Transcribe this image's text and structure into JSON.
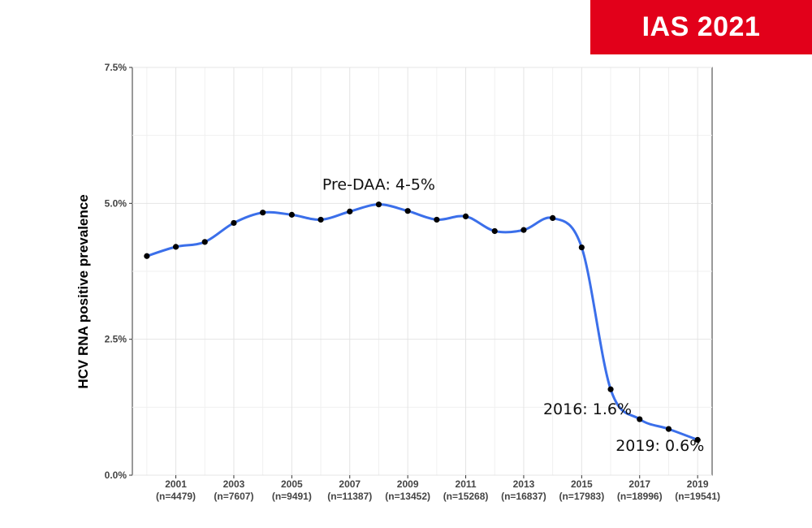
{
  "badge": {
    "text": "IAS 2021",
    "color": "#e2001a"
  },
  "chart_data": {
    "type": "line",
    "title": "",
    "xlabel": "",
    "ylabel": "HCV RNA positive prevalence",
    "x": [
      2000,
      2001,
      2002,
      2003,
      2004,
      2005,
      2006,
      2007,
      2008,
      2009,
      2010,
      2011,
      2012,
      2013,
      2014,
      2015,
      2016,
      2017,
      2018,
      2019
    ],
    "series": [
      {
        "values": [
          4.03,
          4.2,
          4.29,
          4.64,
          4.83,
          4.79,
          4.7,
          4.85,
          4.98,
          4.86,
          4.7,
          4.76,
          4.49,
          4.51,
          4.73,
          4.19,
          1.58,
          1.03,
          0.85,
          0.65
        ],
        "color": "#3b6fea",
        "marker_color": "#000000"
      }
    ],
    "xlim": [
      1999.5,
      2019.5
    ],
    "ylim": [
      0,
      7.5
    ],
    "y_ticks": [
      {
        "value": 0,
        "label": "0.0%"
      },
      {
        "value": 2.5,
        "label": "2.5%"
      },
      {
        "value": 5,
        "label": "5.0%"
      },
      {
        "value": 7.5,
        "label": "7.5%"
      }
    ],
    "x_ticks": [
      {
        "value": 2001,
        "label": "2001",
        "sublabel": "(n=4479)"
      },
      {
        "value": 2003,
        "label": "2003",
        "sublabel": "(n=7607)"
      },
      {
        "value": 2005,
        "label": "2005",
        "sublabel": "(n=9491)"
      },
      {
        "value": 2007,
        "label": "2007",
        "sublabel": "(n=11387)"
      },
      {
        "value": 2009,
        "label": "2009",
        "sublabel": "(n=13452)"
      },
      {
        "value": 2011,
        "label": "2011",
        "sublabel": "(n=15268)"
      },
      {
        "value": 2013,
        "label": "2013",
        "sublabel": "(n=16837)"
      },
      {
        "value": 2015,
        "label": "2015",
        "sublabel": "(n=17983)"
      },
      {
        "value": 2017,
        "label": "2017",
        "sublabel": "(n=18996)"
      },
      {
        "value": 2019,
        "label": "2019",
        "sublabel": "(n=19541)"
      }
    ],
    "grid": true,
    "annotations": [
      {
        "text": "Pre-DAA: 4-5%",
        "x": 2008,
        "y": 5.25
      },
      {
        "text": "2016: 1.6%",
        "x": 2015.2,
        "y": 1.12
      },
      {
        "text": "2019: 0.6%",
        "x": 2017.7,
        "y": 0.45
      }
    ]
  }
}
